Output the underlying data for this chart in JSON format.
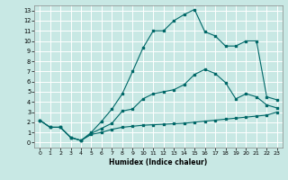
{
  "xlabel": "Humidex (Indice chaleur)",
  "bg_color": "#c8e8e4",
  "grid_color": "#ffffff",
  "line_color": "#006868",
  "xlim": [
    -0.5,
    23.5
  ],
  "ylim": [
    -0.5,
    13.5
  ],
  "xticks": [
    0,
    1,
    2,
    3,
    4,
    5,
    6,
    7,
    8,
    9,
    10,
    11,
    12,
    13,
    14,
    15,
    16,
    17,
    18,
    19,
    20,
    21,
    22,
    23
  ],
  "yticks": [
    0,
    1,
    2,
    3,
    4,
    5,
    6,
    7,
    8,
    9,
    10,
    11,
    12,
    13
  ],
  "line1_x": [
    0,
    1,
    2,
    3,
    4,
    5,
    6,
    7,
    8,
    9,
    10,
    11,
    12,
    13,
    14,
    15,
    16,
    17,
    18,
    19,
    20,
    21,
    22,
    23
  ],
  "line1_y": [
    2.2,
    1.5,
    1.5,
    0.5,
    0.2,
    0.8,
    1.0,
    1.3,
    1.5,
    1.6,
    1.7,
    1.75,
    1.8,
    1.85,
    1.9,
    2.0,
    2.1,
    2.2,
    2.3,
    2.4,
    2.5,
    2.6,
    2.7,
    3.0
  ],
  "line2_x": [
    0,
    1,
    2,
    3,
    4,
    5,
    6,
    7,
    8,
    9,
    10,
    11,
    12,
    13,
    14,
    15,
    16,
    17,
    18,
    19,
    20,
    21,
    22,
    23
  ],
  "line2_y": [
    2.2,
    1.5,
    1.5,
    0.5,
    0.2,
    0.9,
    1.4,
    1.9,
    3.1,
    3.3,
    4.3,
    4.8,
    5.0,
    5.2,
    5.7,
    6.7,
    7.2,
    6.8,
    5.9,
    4.3,
    4.8,
    4.5,
    3.7,
    3.4
  ],
  "line3_x": [
    0,
    1,
    2,
    3,
    4,
    5,
    6,
    7,
    8,
    9,
    10,
    11,
    12,
    13,
    14,
    15,
    16,
    17,
    18,
    19,
    20,
    21,
    22,
    23
  ],
  "line3_y": [
    2.2,
    1.5,
    1.5,
    0.5,
    0.2,
    1.0,
    2.1,
    3.3,
    4.8,
    7.0,
    9.3,
    11.0,
    11.0,
    12.0,
    12.6,
    13.1,
    10.9,
    10.5,
    9.5,
    9.5,
    10.0,
    10.0,
    4.5,
    4.2
  ]
}
